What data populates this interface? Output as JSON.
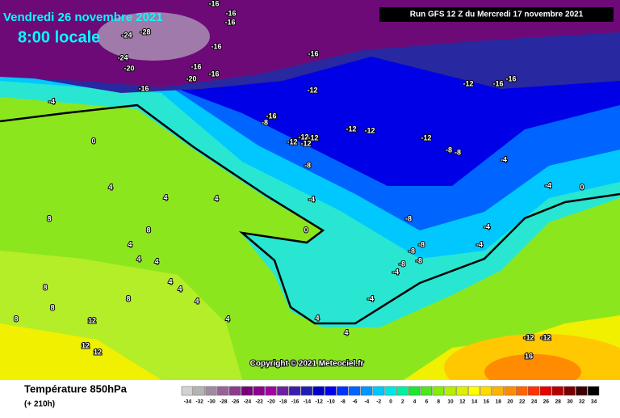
{
  "header": {
    "date": "Vendredi 26 novembre 2021",
    "time": "8:00 locale",
    "run": "Run GFS 12 Z du Mercredi 17 novembre 2021"
  },
  "map": {
    "copyright": "Copyright © 2021 Meteociel.fr",
    "isotherm_labels": [
      -16,
      -16,
      -16,
      -24,
      -28,
      -16,
      -24,
      -20,
      -16,
      -16,
      -20,
      -16,
      -16,
      -12,
      -12,
      -16,
      -16,
      -4,
      -16,
      -8,
      -12,
      -12,
      -12,
      -12,
      -12,
      -12,
      -12,
      -8,
      -8,
      -4,
      -8,
      0,
      4,
      4,
      4,
      -4,
      -4,
      0,
      8,
      8,
      -8,
      -4,
      0,
      4,
      4,
      4,
      -4,
      -8,
      -8,
      -8,
      -8,
      -4,
      4,
      8,
      4,
      4,
      8,
      12,
      12,
      12,
      16,
      -12,
      -12,
      4,
      4,
      4,
      8,
      8,
      -4
    ]
  },
  "footer": {
    "title": "Température 850hPa",
    "lead": "(+ 210h)"
  },
  "colorbar": {
    "ticks": [
      -34,
      -32,
      -30,
      -28,
      -26,
      -24,
      -22,
      -20,
      -18,
      -16,
      -14,
      -12,
      -10,
      -8,
      -6,
      -4,
      -2,
      0,
      2,
      4,
      6,
      8,
      10,
      12,
      14,
      16,
      18,
      20,
      22,
      24,
      26,
      28,
      30,
      32,
      34
    ],
    "colors": [
      "#d2d2d2",
      "#b4b4b4",
      "#a08ca0",
      "#966496",
      "#8c3c8c",
      "#780078",
      "#8c008c",
      "#a000a0",
      "#6e1ea0",
      "#3c1eaa",
      "#1e1eb4",
      "#0000c8",
      "#0000f0",
      "#0032ff",
      "#0064ff",
      "#0096ff",
      "#00c8ff",
      "#00e6e6",
      "#00f0a0",
      "#1ee632",
      "#50e61e",
      "#82f000",
      "#b4f000",
      "#dcf000",
      "#ffff00",
      "#ffdc00",
      "#ffb400",
      "#ff8c00",
      "#ff6400",
      "#ff3200",
      "#e60000",
      "#b40000",
      "#780000",
      "#3c0000",
      "#000000"
    ]
  }
}
